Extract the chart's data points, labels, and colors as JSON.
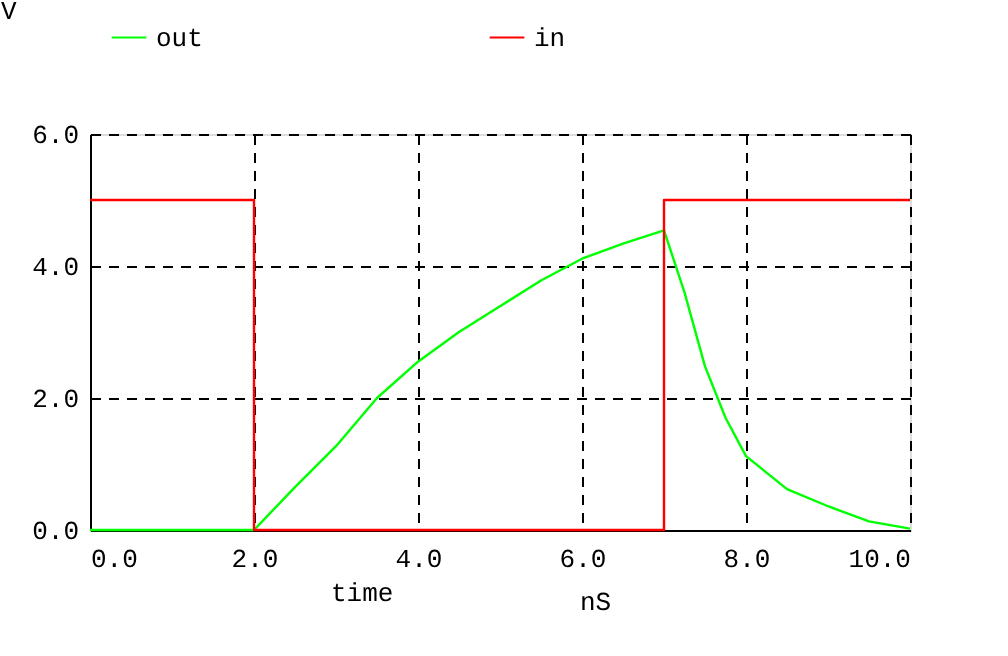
{
  "chart_data": {
    "type": "line",
    "ylabel": "V",
    "xlabel": "time",
    "annotations": [
      "nS"
    ],
    "xlim": [
      0,
      10
    ],
    "ylim": [
      0,
      6
    ],
    "xticks": [
      {
        "value": 0,
        "label": "0.0"
      },
      {
        "value": 2,
        "label": "2.0"
      },
      {
        "value": 4,
        "label": "4.0"
      },
      {
        "value": 6,
        "label": "6.0"
      },
      {
        "value": 8,
        "label": "8.0"
      },
      {
        "value": 10,
        "label": "10.0"
      }
    ],
    "yticks": [
      {
        "value": 0,
        "label": "0.0"
      },
      {
        "value": 2,
        "label": "2.0"
      },
      {
        "value": 4,
        "label": "4.0"
      },
      {
        "value": 6,
        "label": "6.0"
      }
    ],
    "grid": true,
    "legend": "top",
    "line_style": "solid",
    "marker": "none",
    "series": [
      {
        "name": "out",
        "color": "#00ff00",
        "x": [
          0,
          2,
          2.5,
          3,
          3.5,
          4,
          4.5,
          5,
          5.5,
          6,
          6.5,
          7,
          7.25,
          7.5,
          7.75,
          8,
          8.5,
          9,
          9.5,
          10
        ],
        "values": [
          0,
          0,
          0.65,
          1.27,
          2.0,
          2.55,
          3.0,
          3.39,
          3.78,
          4.11,
          4.34,
          4.54,
          3.6,
          2.48,
          1.7,
          1.12,
          0.62,
          0.36,
          0.13,
          0.02
        ]
      },
      {
        "name": "in",
        "color": "#ff0000",
        "x": [
          0,
          2,
          2,
          7,
          7,
          10
        ],
        "values": [
          5,
          5,
          0,
          0,
          5,
          5
        ]
      }
    ]
  }
}
